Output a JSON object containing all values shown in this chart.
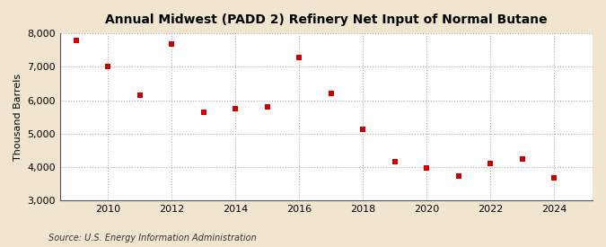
{
  "title": "Annual Midwest (PADD 2) Refinery Net Input of Normal Butane",
  "ylabel": "Thousand Barrels",
  "source": "Source: U.S. Energy Information Administration",
  "years": [
    2009,
    2010,
    2011,
    2012,
    2013,
    2014,
    2015,
    2016,
    2017,
    2018,
    2019,
    2020,
    2021,
    2022,
    2023,
    2024
  ],
  "values": [
    7780,
    7000,
    6150,
    7680,
    5650,
    5750,
    5800,
    7280,
    6200,
    5130,
    4150,
    3980,
    3720,
    4100,
    4230,
    3680
  ],
  "marker_color": "#cc0000",
  "marker": "s",
  "marker_size": 4,
  "plot_bg_color": "#ffffff",
  "fig_bg_color": "#f0e6d0",
  "grid_color": "#aaaaaa",
  "grid_style": ":",
  "ylim": [
    3000,
    8000
  ],
  "yticks": [
    3000,
    4000,
    5000,
    6000,
    7000,
    8000
  ],
  "xlim": [
    2008.5,
    2025.2
  ],
  "xticks": [
    2010,
    2012,
    2014,
    2016,
    2018,
    2020,
    2022,
    2024
  ],
  "title_fontsize": 10,
  "ylabel_fontsize": 8,
  "tick_fontsize": 8,
  "source_fontsize": 7
}
